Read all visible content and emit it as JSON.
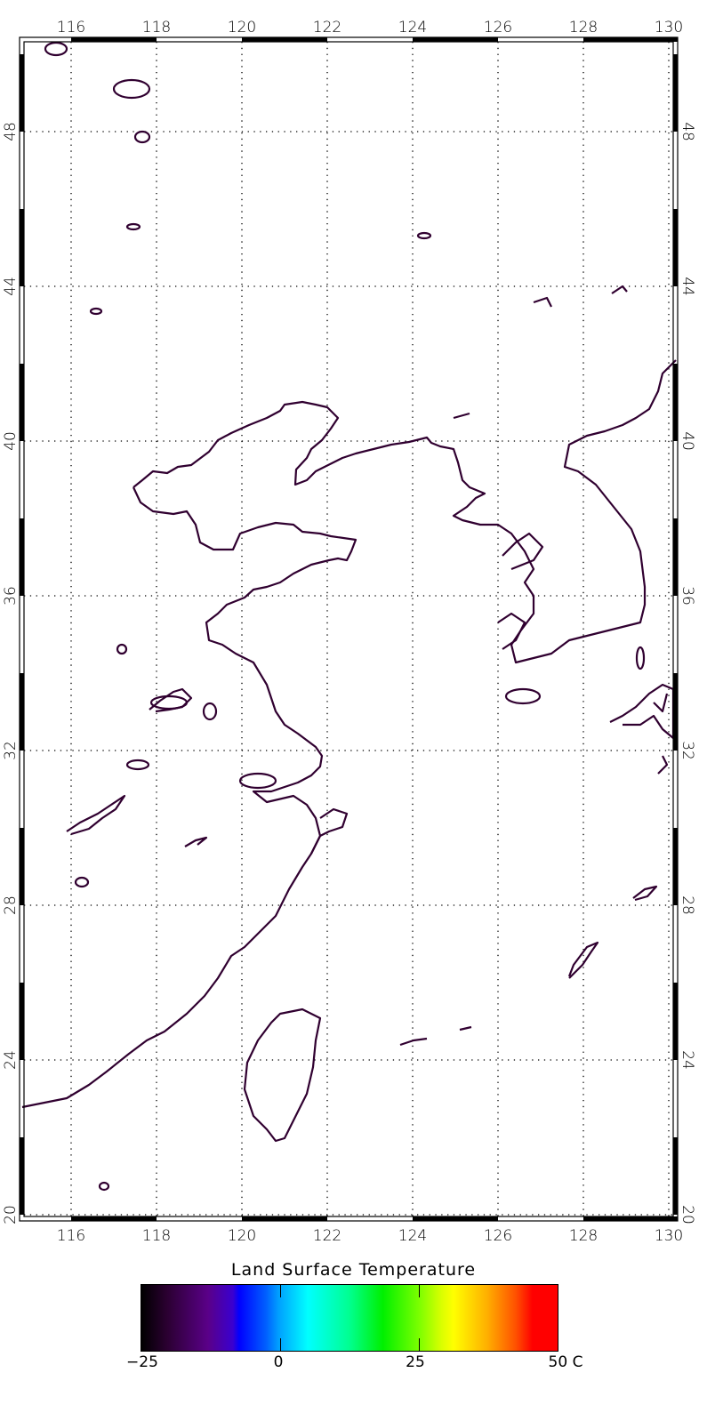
{
  "map": {
    "lon_ticks": [
      "116",
      "118",
      "120",
      "122",
      "124",
      "126",
      "128",
      "130"
    ],
    "lat_ticks": [
      "20",
      "24",
      "28",
      "32",
      "36",
      "40",
      "44",
      "48"
    ],
    "lon_range": [
      114.8,
      130.2
    ],
    "lat_range": [
      19.85,
      50.4
    ],
    "gridlines": "dotted",
    "coastline_color": "#300030"
  },
  "colorbar": {
    "title": "Land Surface Temperature",
    "tick_labels": [
      "−25",
      "0",
      "25",
      "50 C"
    ],
    "range": [
      -25,
      50
    ],
    "unit": "C",
    "colormap": "rainbow (black-purple-blue-cyan-green-yellow-red)"
  }
}
